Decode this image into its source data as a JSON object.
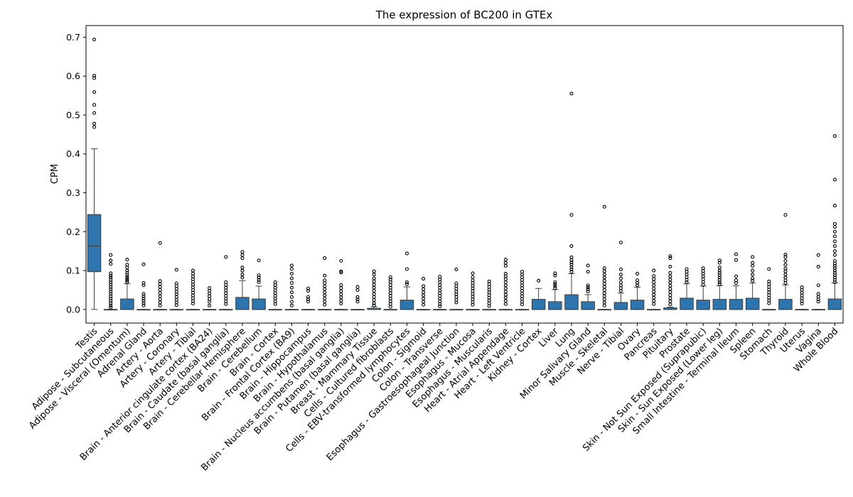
{
  "chart_data": {
    "type": "box",
    "title": "The expression of BC200 in GTEx",
    "xlabel": "",
    "ylabel": "CPM",
    "ylim": [
      -0.035,
      0.73
    ],
    "yticks": [
      0.0,
      0.1,
      0.2,
      0.3,
      0.4,
      0.5,
      0.6,
      0.7
    ],
    "ytick_labels": [
      "0.0",
      "0.1",
      "0.2",
      "0.3",
      "0.4",
      "0.5",
      "0.6",
      "0.7"
    ],
    "grid": false,
    "box_color": "#2f75ad",
    "categories": [
      "Testis",
      "Adipose - Subcutaneous",
      "Adipose - Visceral (Omentum)",
      "Adrenal Gland",
      "Artery - Aorta",
      "Artery - Coronary",
      "Artery - Tibial",
      "Brain - Anterior cingulate cortex (BA24)",
      "Brain - Caudate (basal ganglia)",
      "Brain - Cerebellar Hemisphere",
      "Brain - Cerebellum",
      "Brain - Cortex",
      "Brain - Frontal Cortex (BA9)",
      "Brain - Hippocampus",
      "Brain - Hypothalamus",
      "Brain - Nucleus accumbens (basal ganglia)",
      "Brain - Putamen (basal ganglia)",
      "Breast - Mammary Tissue",
      "Cells - Cultured fibroblasts",
      "Cells - EBV-transformed lymphocytes",
      "Colon - Sigmoid",
      "Colon - Transverse",
      "Esophagus - Gastroesophageal Junction",
      "Esophagus - Mucosa",
      "Esophagus - Muscularis",
      "Heart - Atrial Appendage",
      "Heart - Left Ventricle",
      "Kidney - Cortex",
      "Liver",
      "Lung",
      "Minor Salivary Gland",
      "Muscle - Skeletal",
      "Nerve - Tibial",
      "Ovary",
      "Pancreas",
      "Pituitary",
      "Prostate",
      "Skin - Not Sun Exposed (Suprapubic)",
      "Skin - Sun Exposed (Lower leg)",
      "Small Intestine - Terminal Ileum",
      "Spleen",
      "Stomach",
      "Thyroid",
      "Uterus",
      "Vagina",
      "Whole Blood"
    ],
    "boxes": [
      {
        "q1": 0.097,
        "median": 0.163,
        "q3": 0.244,
        "whisker_low": 0.0,
        "whisker_high": 0.413,
        "outliers": [
          0.694,
          0.601,
          0.595,
          0.559,
          0.526,
          0.505,
          0.478,
          0.469
        ]
      },
      {
        "q1": 0.0,
        "median": 0.0,
        "q3": 0.0,
        "whisker_low": 0.0,
        "whisker_high": 0.0,
        "outliers": [
          0.14,
          0.126,
          0.117,
          0.093,
          0.087,
          0.082,
          0.076,
          0.07,
          0.064,
          0.058,
          0.052,
          0.046,
          0.04,
          0.034,
          0.028,
          0.022,
          0.016,
          0.01,
          0.005
        ]
      },
      {
        "q1": 0.0,
        "median": 0.0,
        "q3": 0.027,
        "whisker_low": 0.0,
        "whisker_high": 0.066,
        "outliers": [
          0.128,
          0.115,
          0.108,
          0.1,
          0.094,
          0.088,
          0.083,
          0.078,
          0.074,
          0.07
        ]
      },
      {
        "q1": 0.0,
        "median": 0.0,
        "q3": 0.0,
        "whisker_low": 0.0,
        "whisker_high": 0.0,
        "outliers": [
          0.116,
          0.068,
          0.062,
          0.04,
          0.034,
          0.028,
          0.022,
          0.016,
          0.01
        ]
      },
      {
        "q1": 0.0,
        "median": 0.0,
        "q3": 0.0,
        "whisker_low": 0.0,
        "whisker_high": 0.0,
        "outliers": [
          0.171,
          0.073,
          0.066,
          0.058,
          0.05,
          0.042,
          0.034,
          0.026,
          0.018,
          0.01
        ]
      },
      {
        "q1": 0.0,
        "median": 0.0,
        "q3": 0.0,
        "whisker_low": 0.0,
        "whisker_high": 0.0,
        "outliers": [
          0.102,
          0.067,
          0.06,
          0.053,
          0.046,
          0.039,
          0.032,
          0.025,
          0.018,
          0.011
        ]
      },
      {
        "q1": 0.0,
        "median": 0.0,
        "q3": 0.0,
        "whisker_low": 0.0,
        "whisker_high": 0.0,
        "outliers": [
          0.1,
          0.092,
          0.085,
          0.078,
          0.071,
          0.064,
          0.057,
          0.05,
          0.043,
          0.036,
          0.029,
          0.022,
          0.015
        ]
      },
      {
        "q1": 0.0,
        "median": 0.0,
        "q3": 0.0,
        "whisker_low": 0.0,
        "whisker_high": 0.0,
        "outliers": [
          0.055,
          0.048,
          0.041,
          0.034,
          0.027,
          0.02,
          0.01
        ]
      },
      {
        "q1": 0.0,
        "median": 0.0,
        "q3": 0.0,
        "whisker_low": 0.0,
        "whisker_high": 0.0,
        "outliers": [
          0.135,
          0.07,
          0.063,
          0.056,
          0.049,
          0.042,
          0.035,
          0.028,
          0.021,
          0.014
        ]
      },
      {
        "q1": 0.0,
        "median": 0.0,
        "q3": 0.031,
        "whisker_low": 0.0,
        "whisker_high": 0.074,
        "outliers": [
          0.148,
          0.14,
          0.132,
          0.108,
          0.1,
          0.09,
          0.082
        ]
      },
      {
        "q1": 0.0,
        "median": 0.0,
        "q3": 0.027,
        "whisker_low": 0.0,
        "whisker_high": 0.06,
        "outliers": [
          0.126,
          0.088,
          0.082,
          0.076,
          0.07
        ]
      },
      {
        "q1": 0.0,
        "median": 0.0,
        "q3": 0.0,
        "whisker_low": 0.0,
        "whisker_high": 0.0,
        "outliers": [
          0.07,
          0.063,
          0.056,
          0.049,
          0.042,
          0.035,
          0.028,
          0.021,
          0.014
        ]
      },
      {
        "q1": 0.0,
        "median": 0.0,
        "q3": 0.0,
        "whisker_low": 0.0,
        "whisker_high": 0.0,
        "outliers": [
          0.113,
          0.104,
          0.092,
          0.08,
          0.068,
          0.056,
          0.044,
          0.032,
          0.02,
          0.01
        ]
      },
      {
        "q1": 0.0,
        "median": 0.0,
        "q3": 0.0,
        "whisker_low": 0.0,
        "whisker_high": 0.0,
        "outliers": [
          0.054,
          0.048,
          0.032,
          0.026,
          0.02
        ]
      },
      {
        "q1": 0.0,
        "median": 0.0,
        "q3": 0.0,
        "whisker_low": 0.0,
        "whisker_high": 0.0,
        "outliers": [
          0.132,
          0.087,
          0.075,
          0.068,
          0.06,
          0.052,
          0.044,
          0.036,
          0.028,
          0.02,
          0.012
        ]
      },
      {
        "q1": 0.0,
        "median": 0.0,
        "q3": 0.0,
        "whisker_low": 0.0,
        "whisker_high": 0.0,
        "outliers": [
          0.125,
          0.098,
          0.095,
          0.063,
          0.055,
          0.047,
          0.039,
          0.031,
          0.023,
          0.015
        ]
      },
      {
        "q1": 0.0,
        "median": 0.0,
        "q3": 0.0,
        "whisker_low": 0.0,
        "whisker_high": 0.0,
        "outliers": [
          0.058,
          0.05,
          0.032,
          0.026,
          0.02
        ]
      },
      {
        "q1": 0.0,
        "median": 0.0,
        "q3": 0.003,
        "whisker_low": 0.0,
        "whisker_high": 0.007,
        "outliers": [
          0.098,
          0.09,
          0.08,
          0.072,
          0.064,
          0.056,
          0.048,
          0.04,
          0.032,
          0.024,
          0.016,
          0.01
        ]
      },
      {
        "q1": 0.0,
        "median": 0.0,
        "q3": 0.0,
        "whisker_low": 0.0,
        "whisker_high": 0.0,
        "outliers": [
          0.083,
          0.077,
          0.07,
          0.063,
          0.056,
          0.049,
          0.042,
          0.035,
          0.028,
          0.021,
          0.014,
          0.007
        ]
      },
      {
        "q1": 0.0,
        "median": 0.0,
        "q3": 0.024,
        "whisker_low": 0.0,
        "whisker_high": 0.058,
        "outliers": [
          0.144,
          0.104,
          0.07,
          0.065
        ]
      },
      {
        "q1": 0.0,
        "median": 0.0,
        "q3": 0.0,
        "whisker_low": 0.0,
        "whisker_high": 0.0,
        "outliers": [
          0.079,
          0.06,
          0.052,
          0.044,
          0.036,
          0.028,
          0.02,
          0.012
        ]
      },
      {
        "q1": 0.0,
        "median": 0.0,
        "q3": 0.0,
        "whisker_low": 0.0,
        "whisker_high": 0.0,
        "outliers": [
          0.084,
          0.077,
          0.07,
          0.063,
          0.056,
          0.049,
          0.042,
          0.035,
          0.028,
          0.021,
          0.014,
          0.008
        ]
      },
      {
        "q1": 0.0,
        "median": 0.0,
        "q3": 0.0,
        "whisker_low": 0.0,
        "whisker_high": 0.0,
        "outliers": [
          0.103,
          0.067,
          0.06,
          0.053,
          0.046,
          0.039,
          0.032,
          0.025,
          0.018
        ]
      },
      {
        "q1": 0.0,
        "median": 0.0,
        "q3": 0.0,
        "whisker_low": 0.0,
        "whisker_high": 0.0,
        "outliers": [
          0.093,
          0.083,
          0.075,
          0.068,
          0.061,
          0.054,
          0.047,
          0.04,
          0.033,
          0.026,
          0.019,
          0.012
        ]
      },
      {
        "q1": 0.0,
        "median": 0.0,
        "q3": 0.0,
        "whisker_low": 0.0,
        "whisker_high": 0.0,
        "outliers": [
          0.072,
          0.065,
          0.058,
          0.051,
          0.044,
          0.037,
          0.03,
          0.023,
          0.016,
          0.009
        ]
      },
      {
        "q1": 0.0,
        "median": 0.0,
        "q3": 0.0,
        "whisker_low": 0.0,
        "whisker_high": 0.0,
        "outliers": [
          0.128,
          0.12,
          0.112,
          0.092,
          0.085,
          0.078,
          0.07,
          0.062,
          0.054,
          0.046,
          0.038,
          0.03,
          0.022,
          0.014
        ]
      },
      {
        "q1": 0.0,
        "median": 0.0,
        "q3": 0.0,
        "whisker_low": 0.0,
        "whisker_high": 0.0,
        "outliers": [
          0.097,
          0.09,
          0.083,
          0.076,
          0.069,
          0.062,
          0.055,
          0.048,
          0.041,
          0.034,
          0.027,
          0.02,
          0.013
        ]
      },
      {
        "q1": 0.0,
        "median": 0.0,
        "q3": 0.026,
        "whisker_low": 0.0,
        "whisker_high": 0.054,
        "outliers": [
          0.074
        ]
      },
      {
        "q1": 0.0,
        "median": 0.0,
        "q3": 0.02,
        "whisker_low": 0.0,
        "whisker_high": 0.051,
        "outliers": [
          0.093,
          0.087,
          0.07,
          0.065,
          0.06,
          0.055
        ]
      },
      {
        "q1": 0.0,
        "median": 0.0,
        "q3": 0.038,
        "whisker_low": 0.0,
        "whisker_high": 0.092,
        "outliers": [
          0.555,
          0.243,
          0.163,
          0.134,
          0.127,
          0.121,
          0.115,
          0.109,
          0.103,
          0.097
        ]
      },
      {
        "q1": 0.0,
        "median": 0.0,
        "q3": 0.02,
        "whisker_low": 0.0,
        "whisker_high": 0.038,
        "outliers": [
          0.113,
          0.097,
          0.062,
          0.057,
          0.052,
          0.046
        ]
      },
      {
        "q1": 0.0,
        "median": 0.0,
        "q3": 0.0,
        "whisker_low": 0.0,
        "whisker_high": 0.0,
        "outliers": [
          0.264,
          0.106,
          0.098,
          0.09,
          0.082,
          0.074,
          0.066,
          0.058,
          0.05,
          0.042,
          0.034,
          0.026,
          0.018,
          0.01
        ]
      },
      {
        "q1": 0.0,
        "median": 0.0,
        "q3": 0.018,
        "whisker_low": 0.0,
        "whisker_high": 0.042,
        "outliers": [
          0.172,
          0.103,
          0.09,
          0.08,
          0.07,
          0.062,
          0.055,
          0.048
        ]
      },
      {
        "q1": 0.0,
        "median": 0.0,
        "q3": 0.024,
        "whisker_low": 0.0,
        "whisker_high": 0.057,
        "outliers": [
          0.092,
          0.075,
          0.068,
          0.062
        ]
      },
      {
        "q1": 0.0,
        "median": 0.0,
        "q3": 0.0,
        "whisker_low": 0.0,
        "whisker_high": 0.0,
        "outliers": [
          0.1,
          0.086,
          0.078,
          0.07,
          0.062,
          0.054,
          0.046,
          0.038,
          0.03,
          0.022,
          0.014
        ]
      },
      {
        "q1": 0.0,
        "median": 0.0,
        "q3": 0.004,
        "whisker_low": 0.0,
        "whisker_high": 0.006,
        "outliers": [
          0.137,
          0.132,
          0.11,
          0.094,
          0.085,
          0.077,
          0.069,
          0.061,
          0.053,
          0.045,
          0.037,
          0.029,
          0.021,
          0.013
        ]
      },
      {
        "q1": 0.0,
        "median": 0.0,
        "q3": 0.029,
        "whisker_low": 0.0,
        "whisker_high": 0.066,
        "outliers": [
          0.104,
          0.097,
          0.09,
          0.083,
          0.076,
          0.07
        ]
      },
      {
        "q1": 0.0,
        "median": 0.0,
        "q3": 0.024,
        "whisker_low": 0.0,
        "whisker_high": 0.06,
        "outliers": [
          0.106,
          0.099,
          0.092,
          0.085,
          0.078,
          0.071,
          0.064
        ]
      },
      {
        "q1": 0.0,
        "median": 0.0,
        "q3": 0.026,
        "whisker_low": 0.0,
        "whisker_high": 0.061,
        "outliers": [
          0.126,
          0.12,
          0.108,
          0.1,
          0.094,
          0.088,
          0.082,
          0.076,
          0.07,
          0.065
        ]
      },
      {
        "q1": 0.0,
        "median": 0.0,
        "q3": 0.026,
        "whisker_low": 0.0,
        "whisker_high": 0.061,
        "outliers": [
          0.142,
          0.127,
          0.085,
          0.075,
          0.068
        ]
      },
      {
        "q1": 0.0,
        "median": 0.0,
        "q3": 0.029,
        "whisker_low": 0.0,
        "whisker_high": 0.068,
        "outliers": [
          0.135,
          0.12,
          0.112,
          0.1,
          0.09,
          0.08,
          0.074
        ]
      },
      {
        "q1": 0.0,
        "median": 0.0,
        "q3": 0.0,
        "whisker_low": 0.0,
        "whisker_high": 0.0,
        "outliers": [
          0.104,
          0.072,
          0.065,
          0.058,
          0.051,
          0.044,
          0.037,
          0.03,
          0.023,
          0.016
        ]
      },
      {
        "q1": 0.0,
        "median": 0.0,
        "q3": 0.026,
        "whisker_low": 0.0,
        "whisker_high": 0.063,
        "outliers": [
          0.243,
          0.141,
          0.135,
          0.125,
          0.115,
          0.105,
          0.098,
          0.09,
          0.082,
          0.075,
          0.068
        ]
      },
      {
        "q1": 0.0,
        "median": 0.0,
        "q3": 0.0,
        "whisker_low": 0.0,
        "whisker_high": 0.0,
        "outliers": [
          0.057,
          0.05,
          0.043,
          0.036,
          0.029,
          0.022,
          0.015
        ]
      },
      {
        "q1": 0.0,
        "median": 0.0,
        "q3": 0.0,
        "whisker_low": 0.0,
        "whisker_high": 0.0,
        "outliers": [
          0.14,
          0.11,
          0.062,
          0.04,
          0.033,
          0.026,
          0.02
        ]
      },
      {
        "q1": 0.0,
        "median": 0.0,
        "q3": 0.027,
        "whisker_low": 0.0,
        "whisker_high": 0.068,
        "outliers": [
          0.446,
          0.334,
          0.267,
          0.22,
          0.212,
          0.2,
          0.188,
          0.175,
          0.163,
          0.15,
          0.14,
          0.125,
          0.118,
          0.112,
          0.106,
          0.1,
          0.094,
          0.088,
          0.082,
          0.076,
          0.07
        ]
      }
    ]
  }
}
